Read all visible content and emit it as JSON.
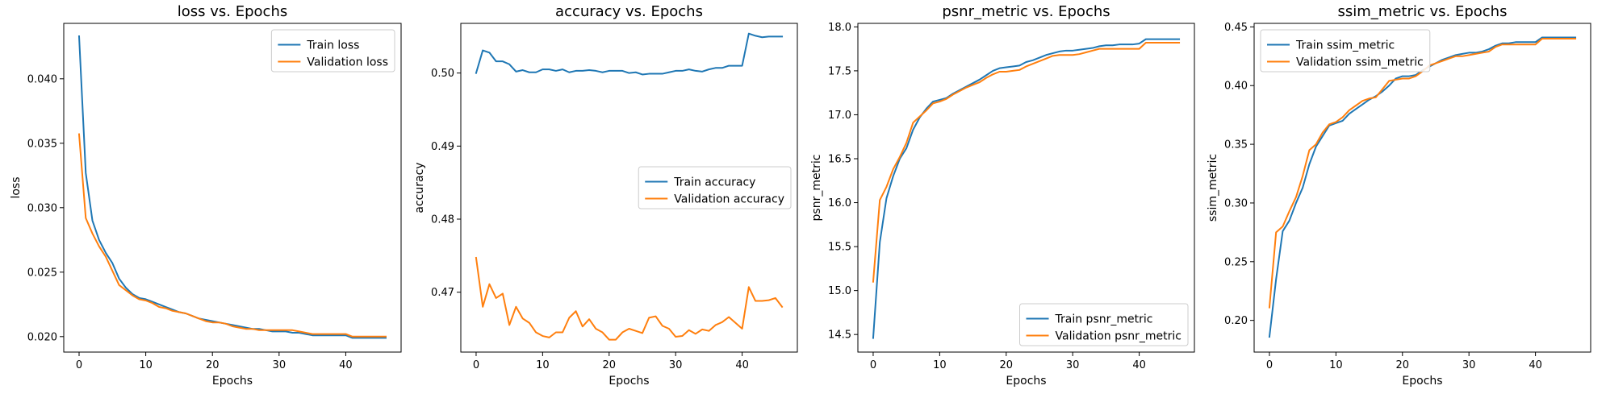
{
  "colors": {
    "train": "#1f77b4",
    "validation": "#ff7f0e",
    "frame": "#000000",
    "legend_border": "#cccccc"
  },
  "chart_data": [
    {
      "type": "line",
      "title": "loss vs. Epochs",
      "xlabel": "Epochs",
      "ylabel": "loss",
      "xlim": [
        -2.3,
        48.3
      ],
      "ylim": [
        0.0188,
        0.0443
      ],
      "xticks": [
        0,
        10,
        20,
        30,
        40
      ],
      "yticks": [
        0.02,
        0.025,
        0.03,
        0.035,
        0.04
      ],
      "ytick_labels": [
        "0.020",
        "0.025",
        "0.030",
        "0.035",
        "0.040"
      ],
      "legend_position": "upper-right",
      "grid": false,
      "x": [
        0,
        1,
        2,
        3,
        4,
        5,
        6,
        7,
        8,
        9,
        10,
        11,
        12,
        13,
        14,
        15,
        16,
        17,
        18,
        19,
        20,
        21,
        22,
        23,
        24,
        25,
        26,
        27,
        28,
        29,
        30,
        31,
        32,
        33,
        34,
        35,
        36,
        37,
        38,
        39,
        40,
        41,
        42,
        43,
        44,
        45,
        46
      ],
      "series": [
        {
          "name": "Train loss",
          "color": "#1f77b4",
          "values": [
            0.0433,
            0.0327,
            0.029,
            0.0275,
            0.0265,
            0.0257,
            0.0245,
            0.0238,
            0.0233,
            0.023,
            0.0229,
            0.0227,
            0.0225,
            0.0223,
            0.0221,
            0.0219,
            0.0218,
            0.0216,
            0.0214,
            0.0213,
            0.0212,
            0.0211,
            0.021,
            0.0209,
            0.0208,
            0.0207,
            0.0206,
            0.0206,
            0.0205,
            0.0204,
            0.0204,
            0.0204,
            0.0203,
            0.0203,
            0.0202,
            0.0201,
            0.0201,
            0.0201,
            0.0201,
            0.0201,
            0.0201,
            0.0199,
            0.0199,
            0.0199,
            0.0199,
            0.0199,
            0.0199
          ]
        },
        {
          "name": "Validation loss",
          "color": "#ff7f0e",
          "values": [
            0.0357,
            0.0292,
            0.028,
            0.027,
            0.0262,
            0.0251,
            0.024,
            0.0236,
            0.0232,
            0.0229,
            0.0228,
            0.0226,
            0.0223,
            0.0222,
            0.022,
            0.0219,
            0.0218,
            0.0216,
            0.0214,
            0.0212,
            0.0211,
            0.0211,
            0.021,
            0.0208,
            0.0207,
            0.0206,
            0.0206,
            0.0205,
            0.0205,
            0.0205,
            0.0205,
            0.0205,
            0.0205,
            0.0204,
            0.0203,
            0.0202,
            0.0202,
            0.0202,
            0.0202,
            0.0202,
            0.0202,
            0.02,
            0.02,
            0.02,
            0.02,
            0.02,
            0.02
          ]
        }
      ]
    },
    {
      "type": "line",
      "title": "accuracy vs. Epochs",
      "xlabel": "Epochs",
      "ylabel": "accuracy",
      "xlim": [
        -2.3,
        48.3
      ],
      "ylim": [
        0.4618,
        0.5068
      ],
      "xticks": [
        0,
        10,
        20,
        30,
        40
      ],
      "yticks": [
        0.47,
        0.48,
        0.49,
        0.5
      ],
      "ytick_labels": [
        "0.47",
        "0.48",
        "0.49",
        "0.50"
      ],
      "legend_position": "center-right",
      "grid": false,
      "x": [
        0,
        1,
        2,
        3,
        4,
        5,
        6,
        7,
        8,
        9,
        10,
        11,
        12,
        13,
        14,
        15,
        16,
        17,
        18,
        19,
        20,
        21,
        22,
        23,
        24,
        25,
        26,
        27,
        28,
        29,
        30,
        31,
        32,
        33,
        34,
        35,
        36,
        37,
        38,
        39,
        40,
        41,
        42,
        43,
        44,
        45,
        46
      ],
      "series": [
        {
          "name": "Train accuracy",
          "color": "#1f77b4",
          "values": [
            0.5,
            0.5031,
            0.5028,
            0.5016,
            0.5016,
            0.5012,
            0.5002,
            0.5004,
            0.5001,
            0.5001,
            0.5005,
            0.5005,
            0.5003,
            0.5005,
            0.5001,
            0.5003,
            0.5003,
            0.5004,
            0.5003,
            0.5001,
            0.5003,
            0.5003,
            0.5003,
            0.5,
            0.5001,
            0.4998,
            0.4999,
            0.4999,
            0.4999,
            0.5001,
            0.5003,
            0.5003,
            0.5005,
            0.5003,
            0.5002,
            0.5005,
            0.5007,
            0.5007,
            0.501,
            0.501,
            0.501,
            0.5054,
            0.5051,
            0.5049,
            0.505,
            0.505,
            0.505
          ]
        },
        {
          "name": "Validation accuracy",
          "color": "#ff7f0e",
          "values": [
            0.4747,
            0.468,
            0.4711,
            0.4692,
            0.4698,
            0.4655,
            0.468,
            0.4664,
            0.4658,
            0.4645,
            0.464,
            0.4638,
            0.4645,
            0.4645,
            0.4665,
            0.4674,
            0.4653,
            0.4663,
            0.465,
            0.4645,
            0.4635,
            0.4635,
            0.4645,
            0.465,
            0.4647,
            0.4644,
            0.4665,
            0.4667,
            0.4654,
            0.465,
            0.4639,
            0.464,
            0.4648,
            0.4643,
            0.4649,
            0.4647,
            0.4655,
            0.4659,
            0.4666,
            0.4658,
            0.465,
            0.4707,
            0.4688,
            0.4688,
            0.4689,
            0.4692,
            0.468
          ]
        }
      ]
    },
    {
      "type": "line",
      "title": "psnr_metric vs. Epochs",
      "xlabel": "Epochs",
      "ylabel": "psnr_metric",
      "xlim": [
        -2.3,
        48.3
      ],
      "ylim": [
        14.3,
        18.04
      ],
      "xticks": [
        0,
        10,
        20,
        30,
        40
      ],
      "yticks": [
        14.5,
        15.0,
        15.5,
        16.0,
        16.5,
        17.0,
        17.5,
        18.0
      ],
      "ytick_labels": [
        "14.5",
        "15.0",
        "15.5",
        "16.0",
        "16.5",
        "17.0",
        "17.5",
        "18.0"
      ],
      "legend_position": "lower-right",
      "grid": false,
      "x": [
        0,
        1,
        2,
        3,
        4,
        5,
        6,
        7,
        8,
        9,
        10,
        11,
        12,
        13,
        14,
        15,
        16,
        17,
        18,
        19,
        20,
        21,
        22,
        23,
        24,
        25,
        26,
        27,
        28,
        29,
        30,
        31,
        32,
        33,
        34,
        35,
        36,
        37,
        38,
        39,
        40,
        41,
        42,
        43,
        44,
        45,
        46
      ],
      "series": [
        {
          "name": "Train psnr_metric",
          "color": "#1f77b4",
          "values": [
            14.46,
            15.55,
            16.05,
            16.3,
            16.5,
            16.62,
            16.83,
            16.97,
            17.07,
            17.15,
            17.17,
            17.19,
            17.24,
            17.28,
            17.32,
            17.36,
            17.4,
            17.45,
            17.5,
            17.53,
            17.54,
            17.55,
            17.56,
            17.6,
            17.62,
            17.65,
            17.68,
            17.7,
            17.72,
            17.73,
            17.73,
            17.74,
            17.75,
            17.76,
            17.78,
            17.79,
            17.79,
            17.8,
            17.8,
            17.8,
            17.81,
            17.86,
            17.86,
            17.86,
            17.86,
            17.86,
            17.86
          ]
        },
        {
          "name": "Validation psnr_metric",
          "color": "#ff7f0e",
          "values": [
            15.1,
            16.03,
            16.18,
            16.38,
            16.52,
            16.68,
            16.91,
            16.98,
            17.05,
            17.13,
            17.15,
            17.18,
            17.23,
            17.27,
            17.31,
            17.34,
            17.37,
            17.42,
            17.46,
            17.49,
            17.49,
            17.5,
            17.51,
            17.55,
            17.58,
            17.61,
            17.64,
            17.67,
            17.68,
            17.68,
            17.68,
            17.69,
            17.71,
            17.73,
            17.75,
            17.75,
            17.75,
            17.75,
            17.75,
            17.75,
            17.75,
            17.82,
            17.82,
            17.82,
            17.82,
            17.82,
            17.82
          ]
        }
      ]
    },
    {
      "type": "line",
      "title": "ssim_metric vs. Epochs",
      "xlabel": "Epochs",
      "ylabel": "ssim_metric",
      "xlim": [
        -2.3,
        48.3
      ],
      "ylim": [
        0.173,
        0.453
      ],
      "xticks": [
        0,
        10,
        20,
        30,
        40
      ],
      "yticks": [
        0.2,
        0.25,
        0.3,
        0.35,
        0.4,
        0.45
      ],
      "ytick_labels": [
        "0.20",
        "0.25",
        "0.30",
        "0.35",
        "0.40",
        "0.45"
      ],
      "legend_position": "upper-left",
      "grid": false,
      "x": [
        0,
        1,
        2,
        3,
        4,
        5,
        6,
        7,
        8,
        9,
        10,
        11,
        12,
        13,
        14,
        15,
        16,
        17,
        18,
        19,
        20,
        21,
        22,
        23,
        24,
        25,
        26,
        27,
        28,
        29,
        30,
        31,
        32,
        33,
        34,
        35,
        36,
        37,
        38,
        39,
        40,
        41,
        42,
        43,
        44,
        45,
        46
      ],
      "series": [
        {
          "name": "Train ssim_metric",
          "color": "#1f77b4",
          "values": [
            0.186,
            0.235,
            0.276,
            0.285,
            0.3,
            0.313,
            0.333,
            0.348,
            0.357,
            0.366,
            0.368,
            0.37,
            0.376,
            0.38,
            0.384,
            0.388,
            0.391,
            0.395,
            0.4,
            0.406,
            0.408,
            0.408,
            0.409,
            0.413,
            0.416,
            0.419,
            0.422,
            0.424,
            0.426,
            0.427,
            0.428,
            0.428,
            0.429,
            0.431,
            0.434,
            0.436,
            0.436,
            0.437,
            0.437,
            0.437,
            0.437,
            0.441,
            0.441,
            0.441,
            0.441,
            0.441,
            0.441
          ]
        },
        {
          "name": "Validation ssim_metric",
          "color": "#ff7f0e",
          "values": [
            0.211,
            0.275,
            0.28,
            0.293,
            0.305,
            0.323,
            0.345,
            0.35,
            0.36,
            0.367,
            0.369,
            0.373,
            0.379,
            0.383,
            0.387,
            0.389,
            0.39,
            0.397,
            0.404,
            0.405,
            0.406,
            0.406,
            0.408,
            0.412,
            0.417,
            0.419,
            0.421,
            0.423,
            0.425,
            0.425,
            0.426,
            0.427,
            0.428,
            0.429,
            0.433,
            0.435,
            0.435,
            0.435,
            0.435,
            0.435,
            0.435,
            0.44,
            0.44,
            0.44,
            0.44,
            0.44,
            0.44
          ]
        }
      ]
    }
  ]
}
